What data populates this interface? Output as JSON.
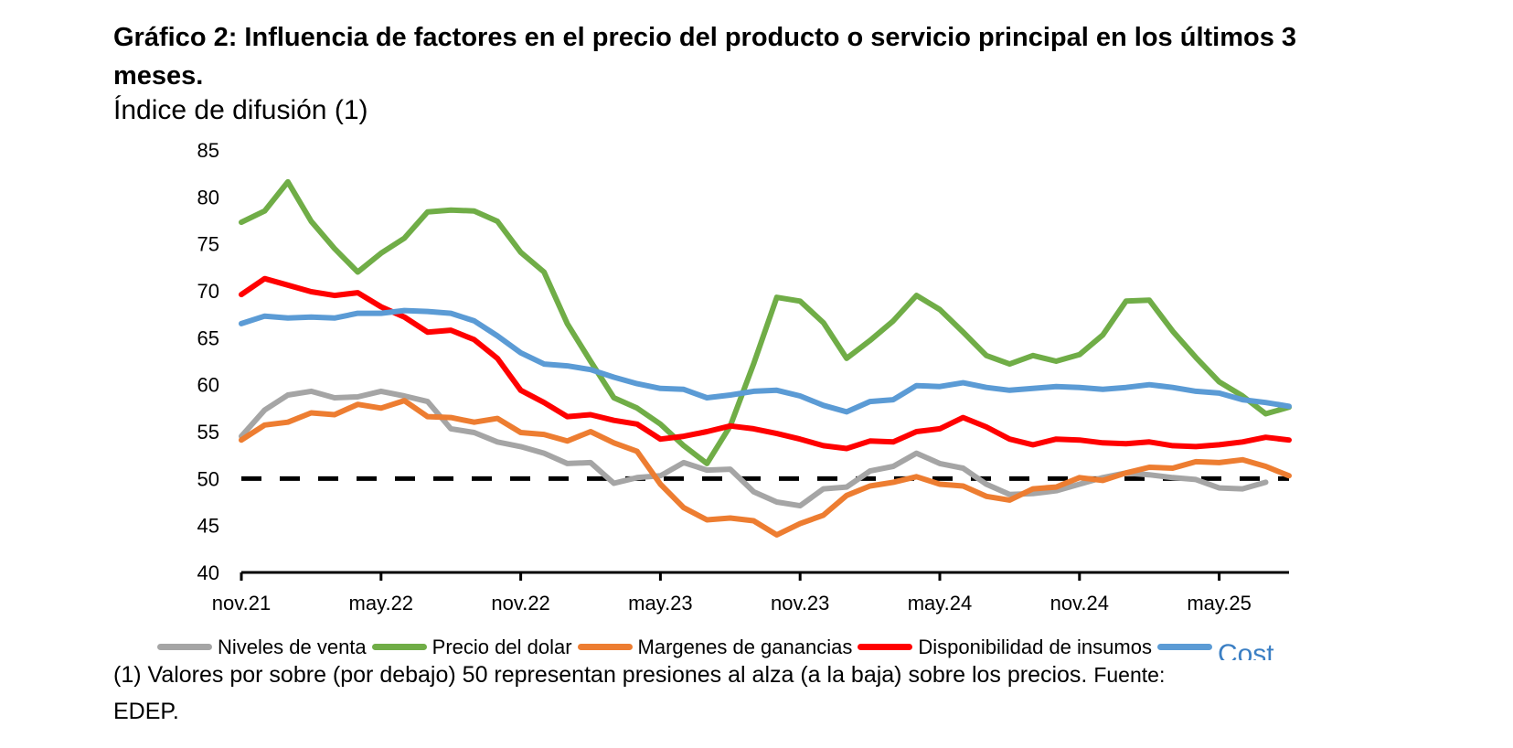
{
  "chart_data": {
    "type": "line",
    "title": "Gráfico 2: Influencia de factores en el precio del producto o servicio principal en los últimos 3 meses.",
    "subtitle": "Índice de difusión (1)",
    "xlabel": "",
    "ylabel": "",
    "ylim": [
      40,
      85
    ],
    "yticks": [
      40,
      45,
      50,
      55,
      60,
      65,
      70,
      75,
      80,
      85
    ],
    "x": [
      "nov.21",
      "dic.21",
      "ene.22",
      "feb.22",
      "mar.22",
      "abr.22",
      "may.22",
      "jun.22",
      "jul.22",
      "ago.22",
      "sep.22",
      "oct.22",
      "nov.22",
      "dic.22",
      "ene.23",
      "feb.23",
      "mar.23",
      "abr.23",
      "may.23",
      "jun.23",
      "jul.23",
      "ago.23",
      "sep.23",
      "oct.23",
      "nov.23",
      "dic.23",
      "ene.24",
      "feb.24",
      "mar.24",
      "abr.24",
      "may.24",
      "jun.24",
      "jul.24",
      "ago.24",
      "sep.24",
      "oct.24",
      "nov.24",
      "dic.24",
      "ene.25",
      "feb.25",
      "mar.25",
      "abr.25",
      "may.25",
      "jun.25",
      "jul.25",
      "ago.25"
    ],
    "xtick_labels": [
      "nov.21",
      "may.22",
      "nov.22",
      "may.23",
      "nov.23",
      "may.24",
      "nov.24",
      "may.25"
    ],
    "grid": false,
    "legend": "bottom",
    "series": [
      {
        "name": "Niveles de venta",
        "color": "#a5a5a5",
        "values": [
          54.5,
          57.3,
          58.9,
          59.3,
          58.6,
          58.7,
          59.3,
          58.8,
          58.2,
          55.3,
          54.9,
          53.9,
          53.4,
          52.7,
          51.6,
          51.7,
          49.5,
          50.1,
          50.3,
          51.7,
          50.9,
          51.0,
          48.6,
          47.5,
          47.1,
          48.9,
          49.1,
          50.8,
          51.3,
          52.7,
          51.6,
          51.1,
          49.4,
          48.3,
          48.4,
          48.7,
          49.4,
          50.1,
          50.6,
          50.4,
          50.1,
          49.9,
          49.0,
          48.9,
          49.6,
          null
        ]
      },
      {
        "name": "Precio del dolar",
        "color": "#70ad47",
        "values": [
          77.3,
          78.5,
          81.6,
          77.4,
          74.5,
          72.0,
          74.0,
          75.6,
          78.4,
          78.6,
          78.5,
          77.4,
          74.1,
          72.0,
          66.5,
          62.5,
          58.6,
          57.5,
          55.8,
          53.5,
          51.6,
          55.6,
          62.2,
          69.3,
          68.9,
          66.6,
          62.8,
          64.7,
          66.8,
          69.5,
          68.0,
          65.6,
          63.1,
          62.2,
          63.1,
          62.5,
          63.2,
          65.3,
          68.9,
          69.0,
          65.7,
          62.9,
          60.3,
          58.8,
          56.9,
          57.6
        ]
      },
      {
        "name": "Margenes de ganancias",
        "color": "#ed7d31",
        "values": [
          54.1,
          55.7,
          56.0,
          57.0,
          56.8,
          57.9,
          57.5,
          58.3,
          56.6,
          56.5,
          56.0,
          56.4,
          54.9,
          54.7,
          54.0,
          55.0,
          53.8,
          52.9,
          49.4,
          46.9,
          45.6,
          45.8,
          45.5,
          44.0,
          45.2,
          46.1,
          48.2,
          49.2,
          49.6,
          50.2,
          49.4,
          49.2,
          48.1,
          47.7,
          48.9,
          49.1,
          50.1,
          49.8,
          50.6,
          51.2,
          51.1,
          51.8,
          51.7,
          52.0,
          51.3,
          50.3
        ]
      },
      {
        "name": "Disponibilidad de insumos",
        "color": "#ff0000",
        "values": [
          69.6,
          71.3,
          70.6,
          69.9,
          69.5,
          69.8,
          68.3,
          67.2,
          65.6,
          65.8,
          64.8,
          62.8,
          59.4,
          58.1,
          56.6,
          56.8,
          56.2,
          55.8,
          54.2,
          54.5,
          55.0,
          55.6,
          55.3,
          54.8,
          54.2,
          53.5,
          53.2,
          54.0,
          53.9,
          55.0,
          55.3,
          56.5,
          55.5,
          54.2,
          53.6,
          54.2,
          54.1,
          53.8,
          53.7,
          53.9,
          53.5,
          53.4,
          53.6,
          53.9,
          54.4,
          54.1
        ]
      },
      {
        "name": "Cost",
        "color": "#5b9bd5",
        "values": [
          66.5,
          67.3,
          67.1,
          67.2,
          67.1,
          67.6,
          67.6,
          67.9,
          67.8,
          67.6,
          66.8,
          65.2,
          63.4,
          62.2,
          62.0,
          61.6,
          60.8,
          60.1,
          59.6,
          59.5,
          58.6,
          58.9,
          59.3,
          59.4,
          58.8,
          57.8,
          57.1,
          58.2,
          58.4,
          59.9,
          59.8,
          60.2,
          59.7,
          59.4,
          59.6,
          59.8,
          59.7,
          59.5,
          59.7,
          60.0,
          59.7,
          59.3,
          59.1,
          58.4,
          58.1,
          57.7
        ]
      }
    ],
    "reference_line": {
      "y": 50,
      "style": "dashed",
      "color": "#000000"
    }
  },
  "footnote": {
    "main": "(1) Valores por sobre (por debajo) 50 representan presiones al alza (a la baja) sobre los precios.",
    "source_prefix": "Fuente:",
    "source_name": "EDEP."
  }
}
